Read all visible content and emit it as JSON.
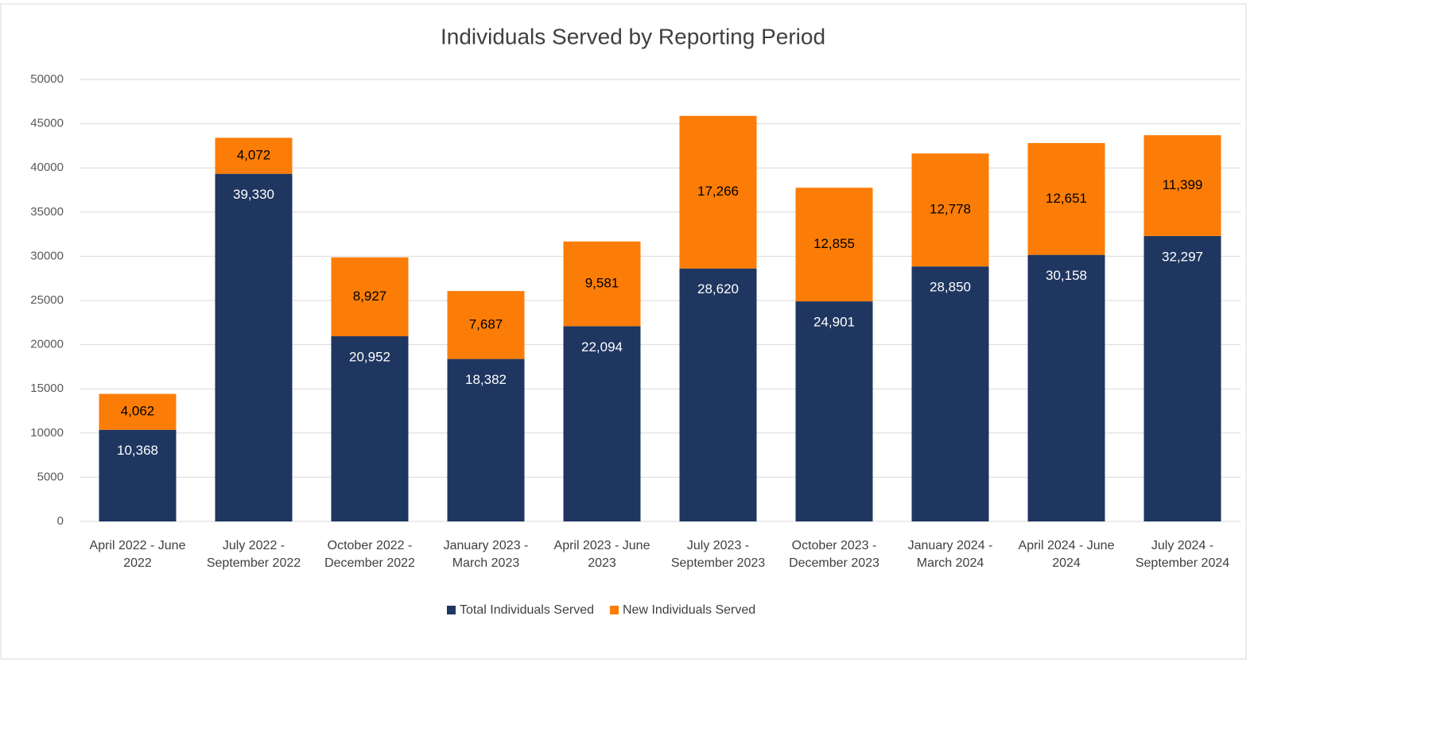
{
  "chart_data": {
    "type": "stacked_bar",
    "title": "Individuals Served by Reporting Period",
    "categories": [
      "April 2022 - June 2022",
      "July 2022 - September 2022",
      "October 2022 - December 2022",
      "January 2023 - March 2023",
      "April 2023 - June 2023",
      "July 2023 - September 2023",
      "October 2023 - December 2023",
      "January 2024 - March 2024",
      "April 2024 - June 2024",
      "July 2024 - September 2024"
    ],
    "series": [
      {
        "name": "Total Individuals Served",
        "color": "#1f3660",
        "label_color": "#ffffff",
        "values": [
          10368,
          39330,
          20952,
          18382,
          22094,
          28620,
          24901,
          28850,
          30158,
          32297
        ],
        "value_labels": [
          "10,368",
          "39,330",
          "20,952",
          "18,382",
          "22,094",
          "28,620",
          "24,901",
          "28,850",
          "30,158",
          "32,297"
        ]
      },
      {
        "name": "New Individuals Served",
        "color": "#fb7d07",
        "label_color": "#000000",
        "values": [
          4062,
          4072,
          8927,
          7687,
          9581,
          17266,
          12855,
          12778,
          12651,
          11399
        ],
        "value_labels": [
          "4,062",
          "4,072",
          "8,927",
          "7,687",
          "9,581",
          "17,266",
          "12,855",
          "12,778",
          "12,651",
          "11,399"
        ]
      }
    ],
    "ylim": [
      0,
      50000
    ],
    "yticks": [
      0,
      5000,
      10000,
      15000,
      20000,
      25000,
      30000,
      35000,
      40000,
      45000,
      50000
    ],
    "grid": true,
    "legend": "bottom"
  }
}
